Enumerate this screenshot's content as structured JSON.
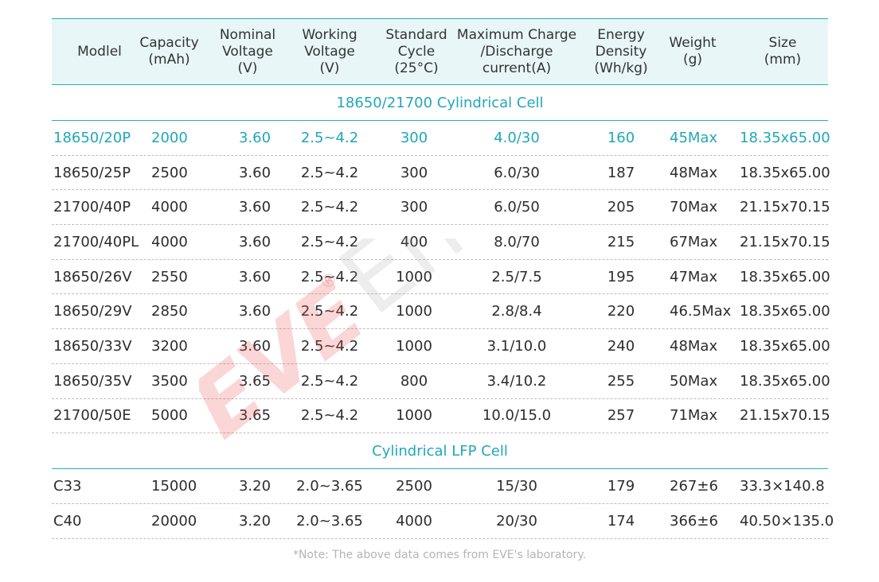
{
  "columns": [
    {
      "label": "Modlel"
    },
    {
      "label": "Capacity\n(mAh)"
    },
    {
      "label": "Nominal\nVoltage\n(V)"
    },
    {
      "label": "Working\nVoltage\n(V)"
    },
    {
      "label": "Standard\nCycle\n(25°C)"
    },
    {
      "label": "Maximum Charge\n/Discharge\ncurrent(A)"
    },
    {
      "label": "Energy\nDensity\n(Wh/kg)"
    },
    {
      "label": "Weight\n(g)"
    },
    {
      "label": "Size\n(mm)"
    }
  ],
  "sections": [
    {
      "title": "18650/21700 Cylindrical Cell",
      "rows": [
        [
          "18650/20P",
          "2000",
          "3.60",
          "2.5~4.2",
          "300",
          "4.0/30",
          "160",
          "45Max",
          "18.35x65.00"
        ],
        [
          "18650/25P",
          "2500",
          "3.60",
          "2.5~4.2",
          "300",
          "6.0/30",
          "187",
          "48Max",
          "18.35x65.00"
        ],
        [
          "21700/40P",
          "4000",
          "3.60",
          "2.5~4.2",
          "300",
          "6.0/50",
          "205",
          "70Max",
          "21.15x70.15"
        ],
        [
          "21700/40PL",
          "4000",
          "3.60",
          "2.5~4.2",
          "400",
          "8.0/70",
          "215",
          "67Max",
          "21.15x70.15"
        ],
        [
          "18650/26V",
          "2550",
          "3.60",
          "2.5~4.2",
          "1000",
          "2.5/7.5",
          "195",
          "47Max",
          "18.35x65.00"
        ],
        [
          "18650/29V",
          "2850",
          "3.60",
          "2.5~4.2",
          "1000",
          "2.8/8.4",
          "220",
          "46.5Max",
          "18.35x65.00"
        ],
        [
          "18650/33V",
          "3200",
          "3.60",
          "2.5~4.2",
          "1000",
          "3.1/10.0",
          "240",
          "48Max",
          "18.35x65.00"
        ],
        [
          "18650/35V",
          "3500",
          "3.65",
          "2.5~4.2",
          "800",
          "3.4/10.2",
          "255",
          "50Max",
          "18.35x65.00"
        ],
        [
          "21700/50E",
          "5000",
          "3.65",
          "2.5~4.2",
          "1000",
          "10.0/15.0",
          "257",
          "71Max",
          "21.15x70.15"
        ]
      ]
    },
    {
      "title": "Cylindrical LFP Cell",
      "rows": [
        [
          "C33",
          "15000",
          "3.20",
          "2.0~3.65",
          "2500",
          "15/30",
          "179",
          "267±6",
          "33.3×140.8"
        ],
        [
          "C40",
          "20000",
          "3.20",
          "2.0~3.65",
          "4000",
          "20/30",
          "174",
          "366±6",
          "40.50×135.0"
        ]
      ]
    }
  ],
  "note": "*Note: The above data comes from EVE's laboratory.",
  "watermark": {
    "brand": "EVE",
    "word": "Energy",
    "reg": "®"
  },
  "colors": {
    "accent": "#23aebf",
    "header_bg": "#e8f6f8",
    "highlight_text": "#21a8b8",
    "watermark_red": "#e8434a"
  }
}
